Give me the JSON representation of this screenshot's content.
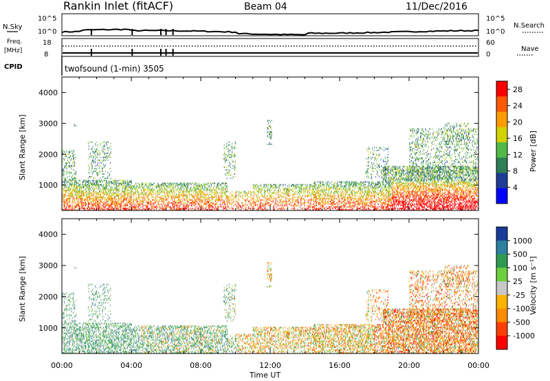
{
  "header": {
    "station": "Rankin Inlet (fitACF)",
    "beam": "Beam 04",
    "date": "11/Dec/2016"
  },
  "status_panels": {
    "nsky_label": "N.Sky",
    "nsearch_label": "N.Search",
    "freq_label_1": "Freq.",
    "freq_label_2": "[MHz]",
    "nave_label": "Nave",
    "cpid_label": "CPID",
    "cpid_value": "twofsound (1-min) 3505",
    "noise_ticks": [
      "10^5",
      "10^0"
    ],
    "freq_ticks": [
      "18",
      "8"
    ],
    "nave_ticks": [
      "60",
      "0"
    ]
  },
  "colors": {
    "power": [
      "#0000ff",
      "#1e3c96",
      "#2e7d54",
      "#52b848",
      "#d2d200",
      "#ff9c00",
      "#ff5a00",
      "#ff0000"
    ],
    "velocity": [
      "#1a3a9a",
      "#2e7fa0",
      "#2e9a50",
      "#6ed040",
      "#c8c8c8",
      "#ffb400",
      "#ff8c00",
      "#ff4000",
      "#ff0000"
    ]
  },
  "chart_data": [
    {
      "type": "heatmap",
      "name": "power",
      "ylabel": "Slant Range [km]",
      "yticks": [
        1000,
        2000,
        3000,
        4000
      ],
      "ylim": [
        180,
        4500
      ],
      "xticks": [
        "00:00",
        "04:00",
        "08:00",
        "12:00",
        "16:00",
        "20:00",
        "00:00"
      ],
      "xlim": [
        0,
        24
      ],
      "colorbar": {
        "label": "Power [dB]",
        "ticks": [
          "4",
          "8",
          "12",
          "16",
          "20",
          "24",
          "28"
        ],
        "range": [
          0,
          30
        ]
      }
    },
    {
      "type": "heatmap",
      "name": "velocity",
      "ylabel": "Slant Range [km]",
      "xlabel": "Time UT",
      "yticks": [
        1000,
        2000,
        3000,
        4000
      ],
      "ylim": [
        180,
        4500
      ],
      "xticks": [
        "00:00",
        "04:00",
        "08:00",
        "12:00",
        "16:00",
        "20:00",
        "00:00"
      ],
      "xlim": [
        0,
        24
      ],
      "colorbar": {
        "label": "Velocity [m s⁻¹]",
        "ticks": [
          "1000",
          "500",
          "100",
          "25",
          "-25",
          "-100",
          "-500",
          "-1000"
        ]
      }
    }
  ]
}
